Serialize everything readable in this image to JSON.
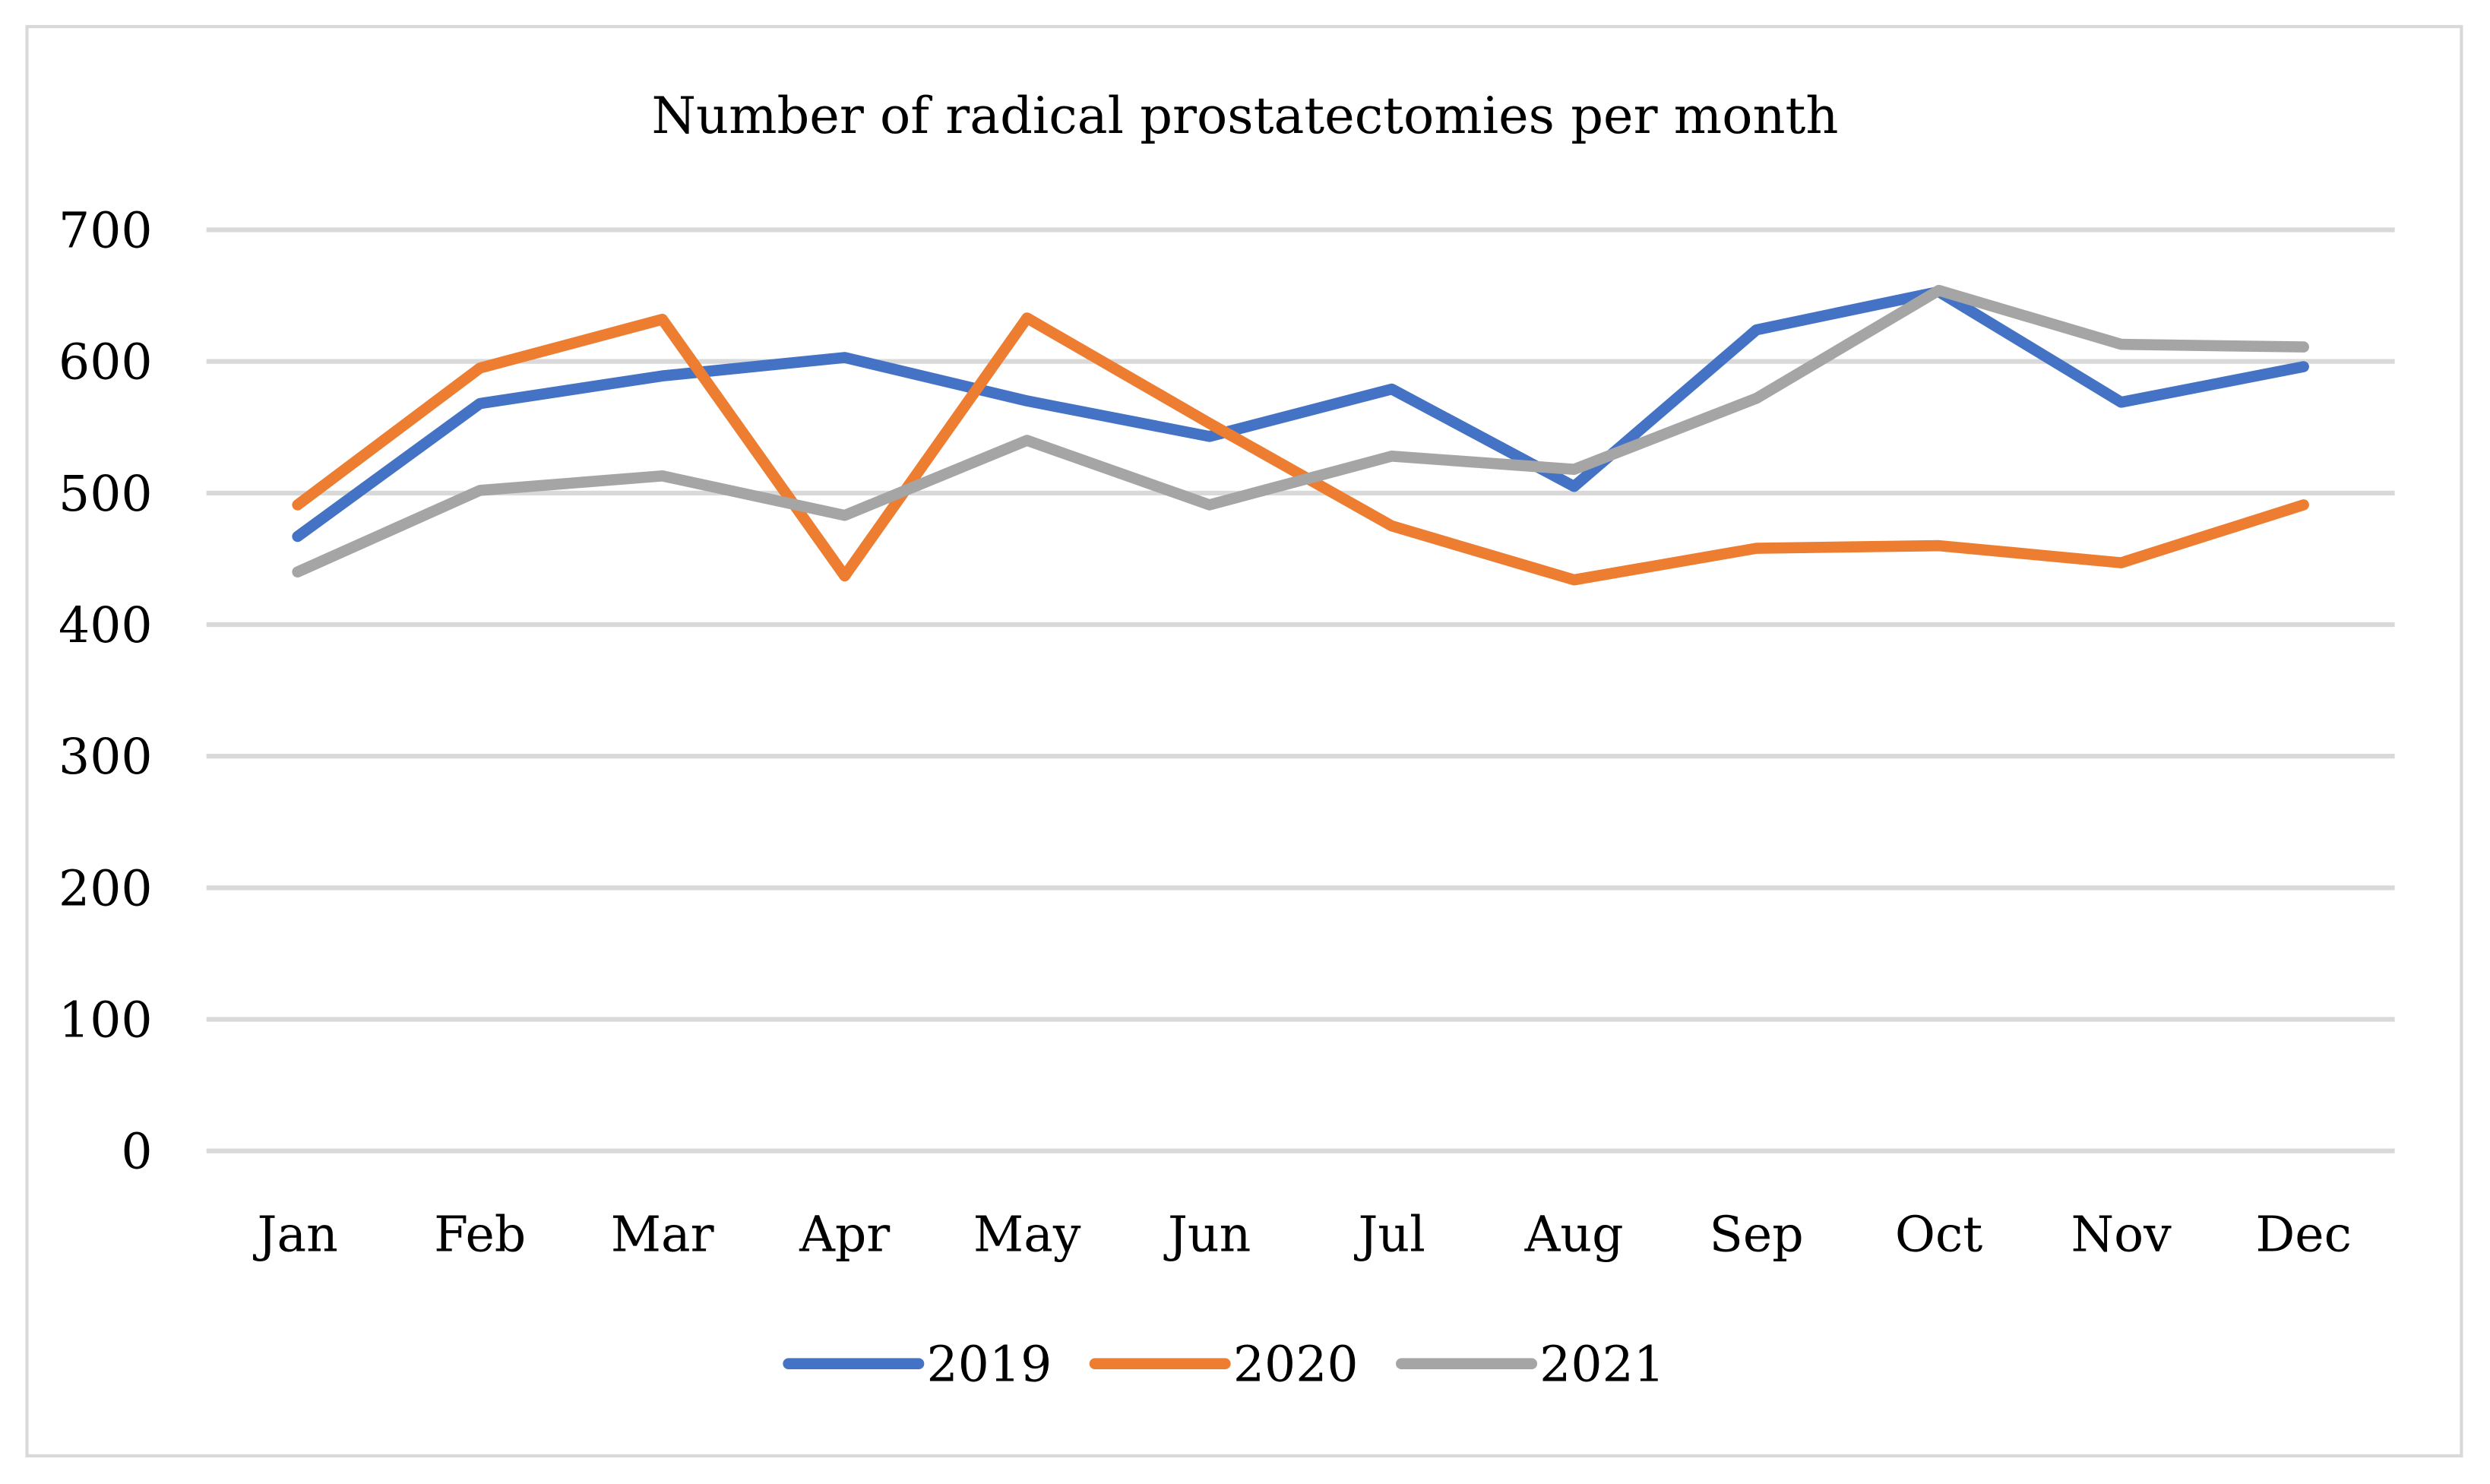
{
  "chart_data": {
    "type": "line",
    "title": "Number of radical prostatectomies per month",
    "xlabel": "",
    "ylabel": "",
    "categories": [
      "Jan",
      "Feb",
      "Mar",
      "Apr",
      "May",
      "Jun",
      "Jul",
      "Aug",
      "Sep",
      "Oct",
      "Nov",
      "Dec"
    ],
    "ylim": [
      0,
      700
    ],
    "yticks": [
      0,
      100,
      200,
      300,
      400,
      500,
      600,
      700
    ],
    "ytick_labels": [
      "0",
      "100",
      "200",
      "300",
      "400",
      "500",
      "600",
      "700"
    ],
    "grid": true,
    "legend_position": "bottom",
    "series": [
      {
        "name": "2019",
        "color": "#4472c4",
        "values": [
          467,
          568,
          589,
          603,
          570,
          543,
          579,
          505,
          624,
          653,
          569,
          596
        ]
      },
      {
        "name": "2020",
        "color": "#ed7d31",
        "values": [
          491,
          595,
          632,
          437,
          633,
          553,
          475,
          434,
          458,
          460,
          447,
          491
        ]
      },
      {
        "name": "2021",
        "color": "#a5a5a5",
        "values": [
          440,
          502,
          513,
          483,
          540,
          491,
          528,
          518,
          572,
          654,
          613,
          611
        ]
      }
    ]
  }
}
